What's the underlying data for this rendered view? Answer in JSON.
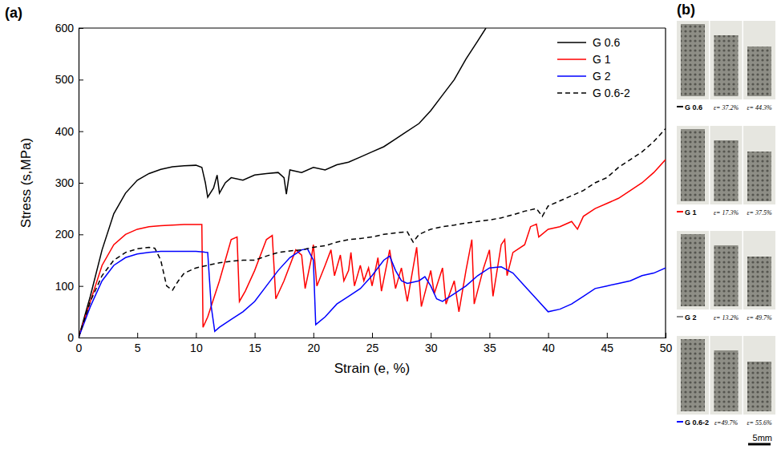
{
  "chart_data": {
    "type": "line",
    "x_label": "Strain (e, %)",
    "y_label": "Stress (s,MPa)",
    "xlim": [
      0,
      50
    ],
    "xticks": [
      0,
      5,
      10,
      15,
      20,
      25,
      30,
      35,
      40,
      45,
      50
    ],
    "ylim": [
      0,
      600
    ],
    "yticks": [
      0,
      100,
      200,
      300,
      400,
      500,
      600
    ],
    "legend": "top-right",
    "series": [
      {
        "name": "G 0.6",
        "color": "#000000",
        "line_style": "solid",
        "x": [
          0,
          1,
          2,
          3,
          4,
          5,
          6,
          7,
          8,
          9,
          10,
          10.5,
          10.8,
          11,
          11.5,
          11.8,
          12,
          12.5,
          13,
          14,
          15,
          16,
          17,
          17.5,
          17.7,
          18,
          19,
          20,
          21,
          22,
          23,
          24,
          25,
          26,
          27,
          28,
          29,
          30,
          31,
          32,
          33,
          34,
          34.7
        ],
        "values": [
          0,
          80,
          170,
          240,
          280,
          305,
          318,
          326,
          331,
          333,
          334,
          330,
          300,
          272,
          290,
          315,
          280,
          300,
          310,
          305,
          315,
          318,
          320,
          310,
          278,
          325,
          320,
          330,
          325,
          335,
          340,
          350,
          360,
          370,
          385,
          400,
          415,
          440,
          470,
          500,
          540,
          575,
          600
        ]
      },
      {
        "name": "G 1",
        "color": "#ff0000",
        "line_style": "solid",
        "x": [
          0,
          1,
          2,
          3,
          4,
          5,
          6,
          7,
          8,
          9,
          10,
          10.5,
          10.6,
          11,
          12,
          12.5,
          13,
          13.5,
          13.7,
          14.2,
          15,
          16,
          16.5,
          16.8,
          17.5,
          18.5,
          19,
          19.3,
          19.8,
          20,
          20.3,
          21,
          21.5,
          21.8,
          22.3,
          22.6,
          23,
          23.2,
          23.5,
          24,
          24.3,
          24.7,
          25,
          25.5,
          25.8,
          26.5,
          27,
          27.5,
          28,
          28.8,
          29.2,
          30,
          30.3,
          31,
          31.3,
          32,
          32.4,
          33,
          33.5,
          33.7,
          34.5,
          35,
          35.3,
          36,
          36.3,
          36.5,
          37,
          38,
          38.5,
          39,
          39.2,
          40,
          41,
          42,
          42.5,
          43,
          44,
          45,
          46,
          47,
          48,
          49,
          50
        ],
        "values": [
          0,
          70,
          140,
          180,
          200,
          210,
          215,
          217,
          218,
          219,
          219,
          219,
          20,
          40,
          110,
          150,
          190,
          195,
          70,
          90,
          130,
          190,
          198,
          75,
          110,
          170,
          160,
          95,
          150,
          180,
          100,
          140,
          170,
          120,
          160,
          110,
          130,
          165,
          100,
          140,
          110,
          135,
          100,
          155,
          90,
          170,
          95,
          135,
          70,
          175,
          60,
          130,
          85,
          135,
          65,
          110,
          50,
          130,
          190,
          65,
          135,
          170,
          80,
          180,
          190,
          120,
          165,
          180,
          215,
          220,
          195,
          210,
          215,
          225,
          210,
          235,
          250,
          260,
          270,
          285,
          300,
          320,
          345
        ]
      },
      {
        "name": "G 2",
        "color": "#0000ff",
        "line_style": "solid",
        "x": [
          0,
          1,
          2,
          3,
          4,
          5,
          6,
          7,
          8,
          9,
          10,
          11,
          11.3,
          11.6,
          12,
          13,
          14,
          15,
          16,
          17,
          18,
          19,
          19.5,
          20,
          20.2,
          21,
          22,
          23,
          24,
          25,
          26,
          26.5,
          27,
          27.5,
          28,
          29,
          29.5,
          30,
          30.5,
          31,
          32,
          33,
          34,
          35,
          36,
          37,
          38,
          39,
          40,
          41,
          42,
          43,
          44,
          45,
          46,
          47,
          48,
          49,
          50
        ],
        "values": [
          0,
          60,
          110,
          140,
          155,
          162,
          165,
          167,
          167,
          167,
          167,
          165,
          60,
          12,
          20,
          35,
          50,
          70,
          100,
          130,
          155,
          170,
          172,
          150,
          25,
          40,
          65,
          80,
          95,
          120,
          150,
          158,
          130,
          110,
          105,
          110,
          118,
          100,
          75,
          70,
          85,
          100,
          120,
          135,
          137,
          125,
          100,
          75,
          50,
          55,
          65,
          80,
          95,
          100,
          105,
          110,
          120,
          125,
          135
        ]
      },
      {
        "name": "G 0.6-2",
        "color": "#000000",
        "line_style": "dashed",
        "x": [
          0,
          1,
          2,
          3,
          4,
          5,
          6,
          6.5,
          7,
          7.5,
          8,
          8.5,
          9,
          10,
          11,
          12,
          13,
          14,
          15,
          16,
          17,
          18,
          19,
          20,
          21,
          22,
          23,
          24,
          25,
          26,
          27,
          28,
          28.5,
          29,
          30,
          31,
          32,
          33,
          34,
          35,
          36,
          37,
          38,
          39,
          39.5,
          40,
          41,
          42,
          43,
          44,
          45,
          46,
          47,
          48,
          49,
          50
        ],
        "values": [
          0,
          70,
          120,
          150,
          165,
          172,
          175,
          173,
          150,
          100,
          92,
          110,
          125,
          135,
          140,
          145,
          148,
          150,
          150,
          158,
          165,
          168,
          170,
          175,
          178,
          185,
          190,
          192,
          195,
          200,
          203,
          205,
          185,
          200,
          210,
          215,
          218,
          222,
          225,
          228,
          232,
          238,
          245,
          250,
          235,
          255,
          265,
          275,
          285,
          300,
          310,
          330,
          345,
          360,
          380,
          405
        ]
      }
    ]
  },
  "figure": {
    "panel_a_label": "(a)",
    "panel_b": {
      "label": "(b)",
      "scale_bar": "5mm",
      "rows": [
        {
          "name": "G 0.6",
          "color": "#000000",
          "captions": [
            "ε= 37.2%",
            "ε= 44.3%"
          ]
        },
        {
          "name": "G 1",
          "color": "#ff0000",
          "captions": [
            "ε= 17.3%",
            "ε= 37.5%"
          ]
        },
        {
          "name": "G 2",
          "color": "#888888",
          "captions": [
            "ε= 13.2%",
            "ε= 49.7%"
          ]
        },
        {
          "name": "G 0.6-2",
          "color": "#0000ff",
          "captions": [
            "ε=49.7%",
            "ε= 55.6%"
          ]
        }
      ]
    }
  }
}
